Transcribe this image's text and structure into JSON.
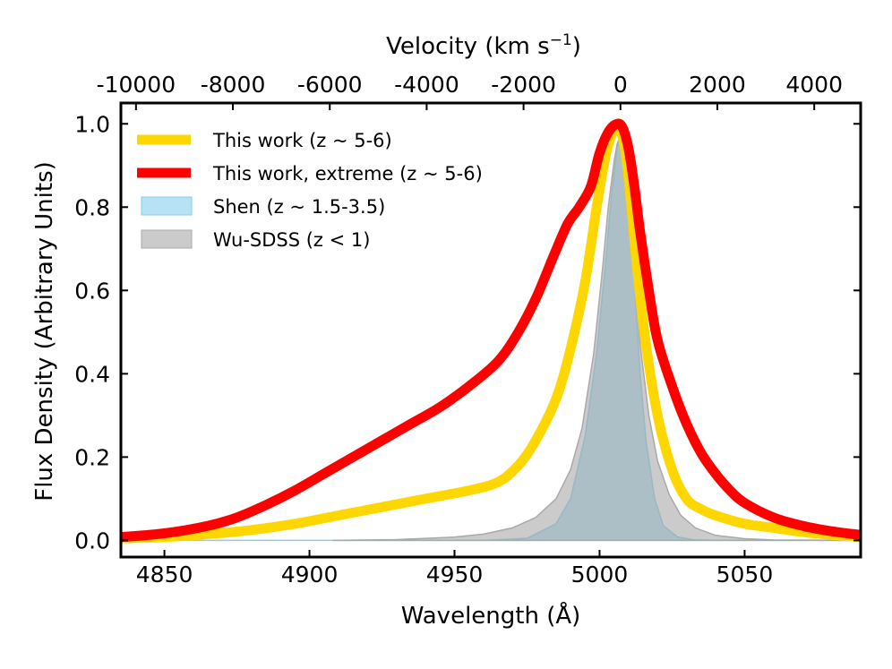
{
  "chart_data": {
    "type": "area",
    "title": "",
    "xlabel": "Wavelength (Å)",
    "ylabel": "Flux Density (Arbitrary Units)",
    "top_xlabel_prefix": "Velocity (km s",
    "top_xlabel_sup": "−1",
    "top_xlabel_suffix": ")",
    "xlim": [
      4835,
      5090
    ],
    "ylim": [
      -0.04,
      1.05
    ],
    "x_ticks": [
      4850,
      4900,
      4950,
      5000,
      5050
    ],
    "x_tick_labels": [
      "4850",
      "4900",
      "4950",
      "5000",
      "5050"
    ],
    "y_ticks": [
      0.0,
      0.2,
      0.4,
      0.6,
      0.8,
      1.0
    ],
    "y_tick_labels": [
      "0.0",
      "0.2",
      "0.4",
      "0.6",
      "0.8",
      "1.0"
    ],
    "top_ticks_wavelength": [
      4840.2,
      4873.6,
      4907.0,
      4940.4,
      4973.8,
      5007.2,
      5040.6,
      5074.0
    ],
    "top_tick_labels": [
      "-10000",
      "-8000",
      "-6000",
      "-4000",
      "-2000",
      "0",
      "2000",
      "4000"
    ],
    "grid": false,
    "legend_position": "top-left",
    "series": [
      {
        "name": "This work (z ~ 5-6)",
        "style": "line",
        "color": "#FFD700",
        "x": [
          4835,
          4850,
          4865,
          4880,
          4895,
          4910,
          4925,
          4940,
          4955,
          4965,
          4972,
          4978,
          4985,
          4990,
          4995,
          4999,
          5002,
          5004,
          5006,
          5007,
          5009,
          5011,
          5013,
          5016,
          5020,
          5025,
          5030,
          5035,
          5040,
          5050,
          5060,
          5070,
          5080,
          5090
        ],
        "y": [
          0.005,
          0.008,
          0.015,
          0.025,
          0.04,
          0.06,
          0.08,
          0.1,
          0.12,
          0.14,
          0.18,
          0.24,
          0.34,
          0.46,
          0.62,
          0.8,
          0.92,
          0.97,
          0.995,
          0.99,
          0.93,
          0.8,
          0.65,
          0.47,
          0.3,
          0.17,
          0.1,
          0.075,
          0.06,
          0.04,
          0.03,
          0.02,
          0.013,
          0.008
        ]
      },
      {
        "name": "This work, extreme (z ~ 5-6)",
        "style": "line",
        "color": "#FF0000",
        "x": [
          4835,
          4850,
          4865,
          4875,
          4885,
          4895,
          4905,
          4915,
          4925,
          4935,
          4945,
          4955,
          4965,
          4972,
          4978,
          4984,
          4989,
          4993,
          4997,
          5000,
          5003,
          5006,
          5008,
          5010,
          5012,
          5014,
          5017,
          5020,
          5025,
          5030,
          5035,
          5040,
          5045,
          5050,
          5060,
          5070,
          5080,
          5090
        ],
        "y": [
          0.008,
          0.017,
          0.035,
          0.055,
          0.085,
          0.12,
          0.16,
          0.2,
          0.24,
          0.28,
          0.32,
          0.37,
          0.43,
          0.5,
          0.58,
          0.68,
          0.76,
          0.8,
          0.85,
          0.93,
          0.98,
          1.0,
          0.99,
          0.94,
          0.85,
          0.74,
          0.6,
          0.48,
          0.37,
          0.28,
          0.21,
          0.16,
          0.12,
          0.09,
          0.055,
          0.035,
          0.022,
          0.013
        ]
      },
      {
        "name": "Shen (z ~ 1.5-3.5)",
        "style": "area",
        "color": "#87CEEB",
        "x": [
          4835,
          4960,
          4975,
          4985,
          4990,
          4995,
          4999,
          5002,
          5004,
          5006,
          5007,
          5008,
          5010,
          5012,
          5014,
          5016,
          5019,
          5022,
          5027,
          5032,
          5040,
          5090
        ],
        "y": [
          0.0,
          0.0,
          0.005,
          0.04,
          0.1,
          0.25,
          0.45,
          0.66,
          0.82,
          0.94,
          0.965,
          0.94,
          0.82,
          0.62,
          0.4,
          0.24,
          0.1,
          0.035,
          0.008,
          0.002,
          0.0,
          0.0
        ]
      },
      {
        "name": "Wu-SDSS (z < 1)",
        "style": "area",
        "color": "#A9A9A9",
        "x": [
          4908,
          4930,
          4950,
          4960,
          4970,
          4978,
          4985,
          4990,
          4994,
          4998,
          5001,
          5003,
          5005,
          5006,
          5007,
          5008,
          5010,
          5012,
          5014,
          5017,
          5020,
          5024,
          5028,
          5033,
          5040,
          5050,
          5060,
          5090
        ],
        "y": [
          0.0,
          0.002,
          0.008,
          0.015,
          0.03,
          0.055,
          0.1,
          0.17,
          0.27,
          0.45,
          0.65,
          0.8,
          0.91,
          0.95,
          0.97,
          0.95,
          0.84,
          0.66,
          0.47,
          0.3,
          0.19,
          0.11,
          0.06,
          0.03,
          0.012,
          0.004,
          0.001,
          0.0
        ]
      }
    ],
    "legend": [
      {
        "label": "This work (z ~ 5-6)",
        "style": "line",
        "color": "#FFD700"
      },
      {
        "label": "This work, extreme (z ~ 5-6)",
        "style": "line",
        "color": "#FF0000"
      },
      {
        "label": "Shen (z ~ 1.5-3.5)",
        "style": "patch",
        "color": "#87CEEB"
      },
      {
        "label": "Wu-SDSS (z < 1)",
        "style": "patch",
        "color": "#A9A9A9"
      }
    ]
  }
}
